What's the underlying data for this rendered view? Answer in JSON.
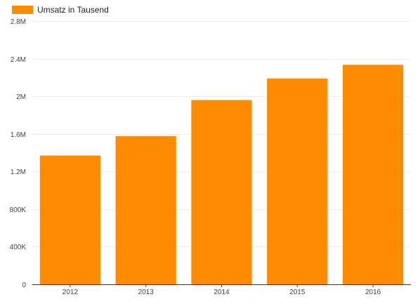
{
  "chart_data": {
    "type": "bar",
    "categories": [
      "2012",
      "2013",
      "2014",
      "2015",
      "2016"
    ],
    "series": [
      {
        "name": "Umsatz in Tausend",
        "values": [
          1370000,
          1575000,
          1960000,
          2190000,
          2335000
        ]
      }
    ],
    "ylim": [
      0,
      2800000
    ],
    "yticks": [
      0,
      400000,
      800000,
      1200000,
      1600000,
      2000000,
      2400000,
      2800000
    ],
    "ytick_labels": [
      "0",
      "400K",
      "800K",
      "1.2M",
      "1.6M",
      "2M",
      "2.4M",
      "2.8M"
    ],
    "xlabel": "",
    "ylabel": "",
    "grid": true,
    "legend_position": "top-left",
    "colors": {
      "bar": "#ff8c00",
      "grid": "#ebebeb",
      "axis": "#333333"
    }
  }
}
